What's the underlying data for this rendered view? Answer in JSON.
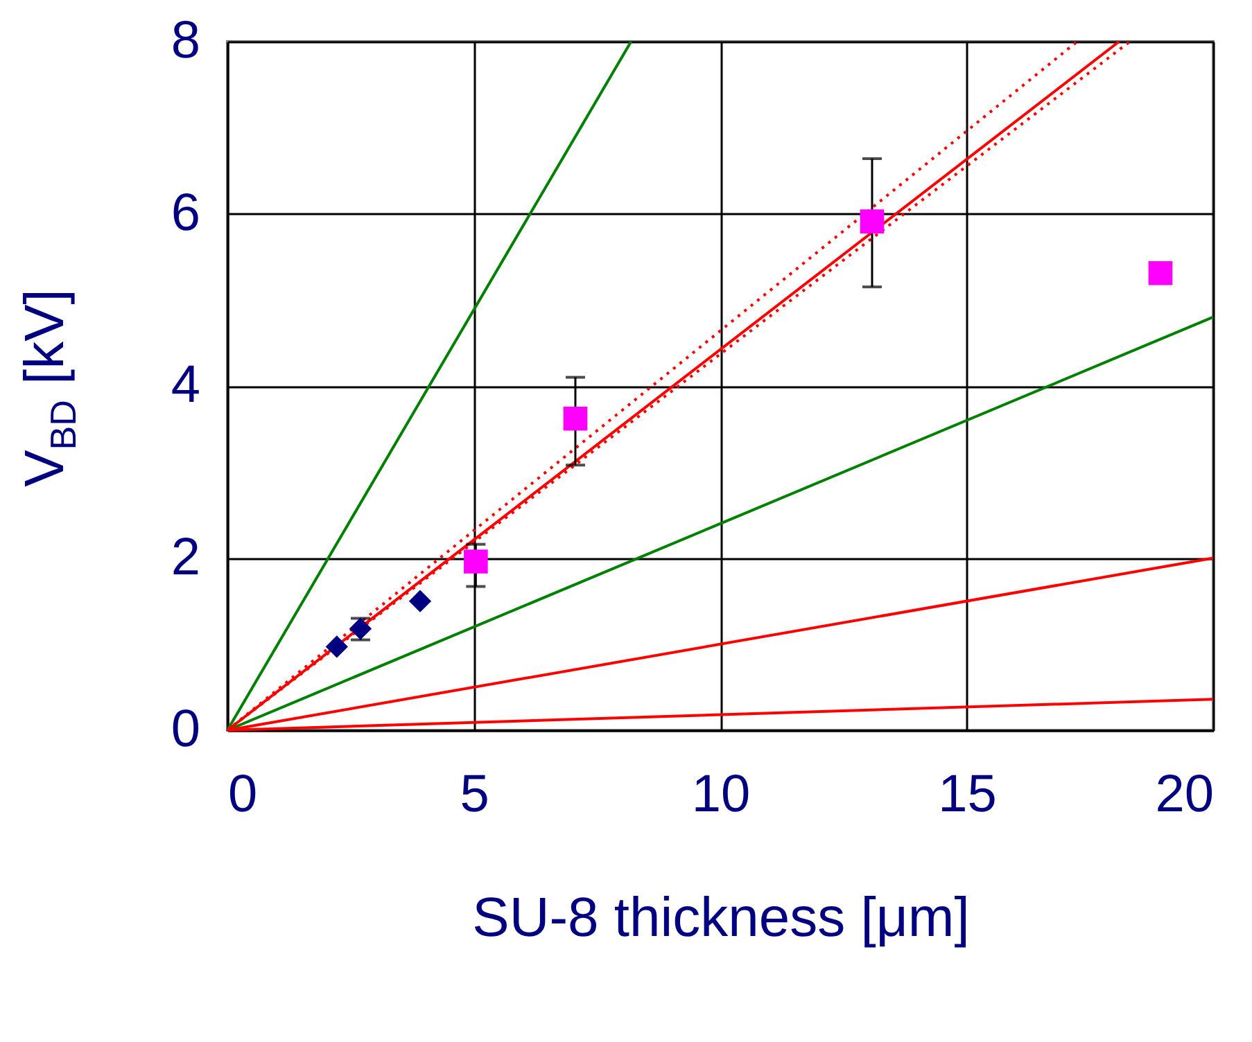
{
  "chart_data": {
    "type": "scatter",
    "xlabel": "SU-8 thickness [μm]",
    "ylabel": "V$_{BD}$ [kV]",
    "xlim": [
      0,
      20
    ],
    "ylim": [
      0,
      8
    ],
    "xticks": [
      0,
      5,
      10,
      15,
      20
    ],
    "yticks": [
      0,
      2,
      4,
      6,
      8
    ],
    "grid": true,
    "series": [
      {
        "type": "line",
        "color": "#008000",
        "line_style": "solid",
        "x": [
          0,
          8.19
        ],
        "values": [
          0,
          8
        ]
      },
      {
        "type": "line",
        "color": "#008000",
        "line_style": "solid",
        "x": [
          0,
          20
        ],
        "values": [
          0,
          4.8
        ]
      },
      {
        "type": "line",
        "color": "#ff0000",
        "line_style": "solid",
        "x": [
          0,
          20
        ],
        "values": [
          0,
          2.0
        ]
      },
      {
        "type": "line",
        "color": "#ff0000",
        "line_style": "solid",
        "x": [
          0,
          20
        ],
        "values": [
          0,
          0.36
        ]
      },
      {
        "type": "line",
        "color": "#ff0000",
        "line_style": "solid",
        "x": [
          0,
          18.09
        ],
        "values": [
          0,
          8
        ]
      },
      {
        "type": "line",
        "color": "#ff0000",
        "line_style": "dotted",
        "x": [
          0,
          17.24
        ],
        "values": [
          0,
          8
        ]
      },
      {
        "type": "line",
        "color": "#ff0000",
        "line_style": "dotted",
        "x": [
          0,
          18.31
        ],
        "values": [
          0,
          8
        ]
      },
      {
        "color": "#000080",
        "marker": "diamond",
        "x": [
          2.22,
          2.7,
          3.91
        ],
        "values": [
          0.97,
          1.18,
          1.5
        ],
        "errors": [
          null,
          [
            1.05,
            1.3
          ],
          null
        ]
      },
      {
        "color": "#ff00ff",
        "marker": "square",
        "x": [
          5.04,
          7.06,
          13.08,
          18.93
        ],
        "values": [
          1.96,
          3.62,
          5.91,
          5.31
        ],
        "errors": [
          [
            1.67,
            2.16
          ],
          [
            3.08,
            4.1
          ],
          [
            5.15,
            6.64
          ],
          null
        ]
      }
    ]
  }
}
